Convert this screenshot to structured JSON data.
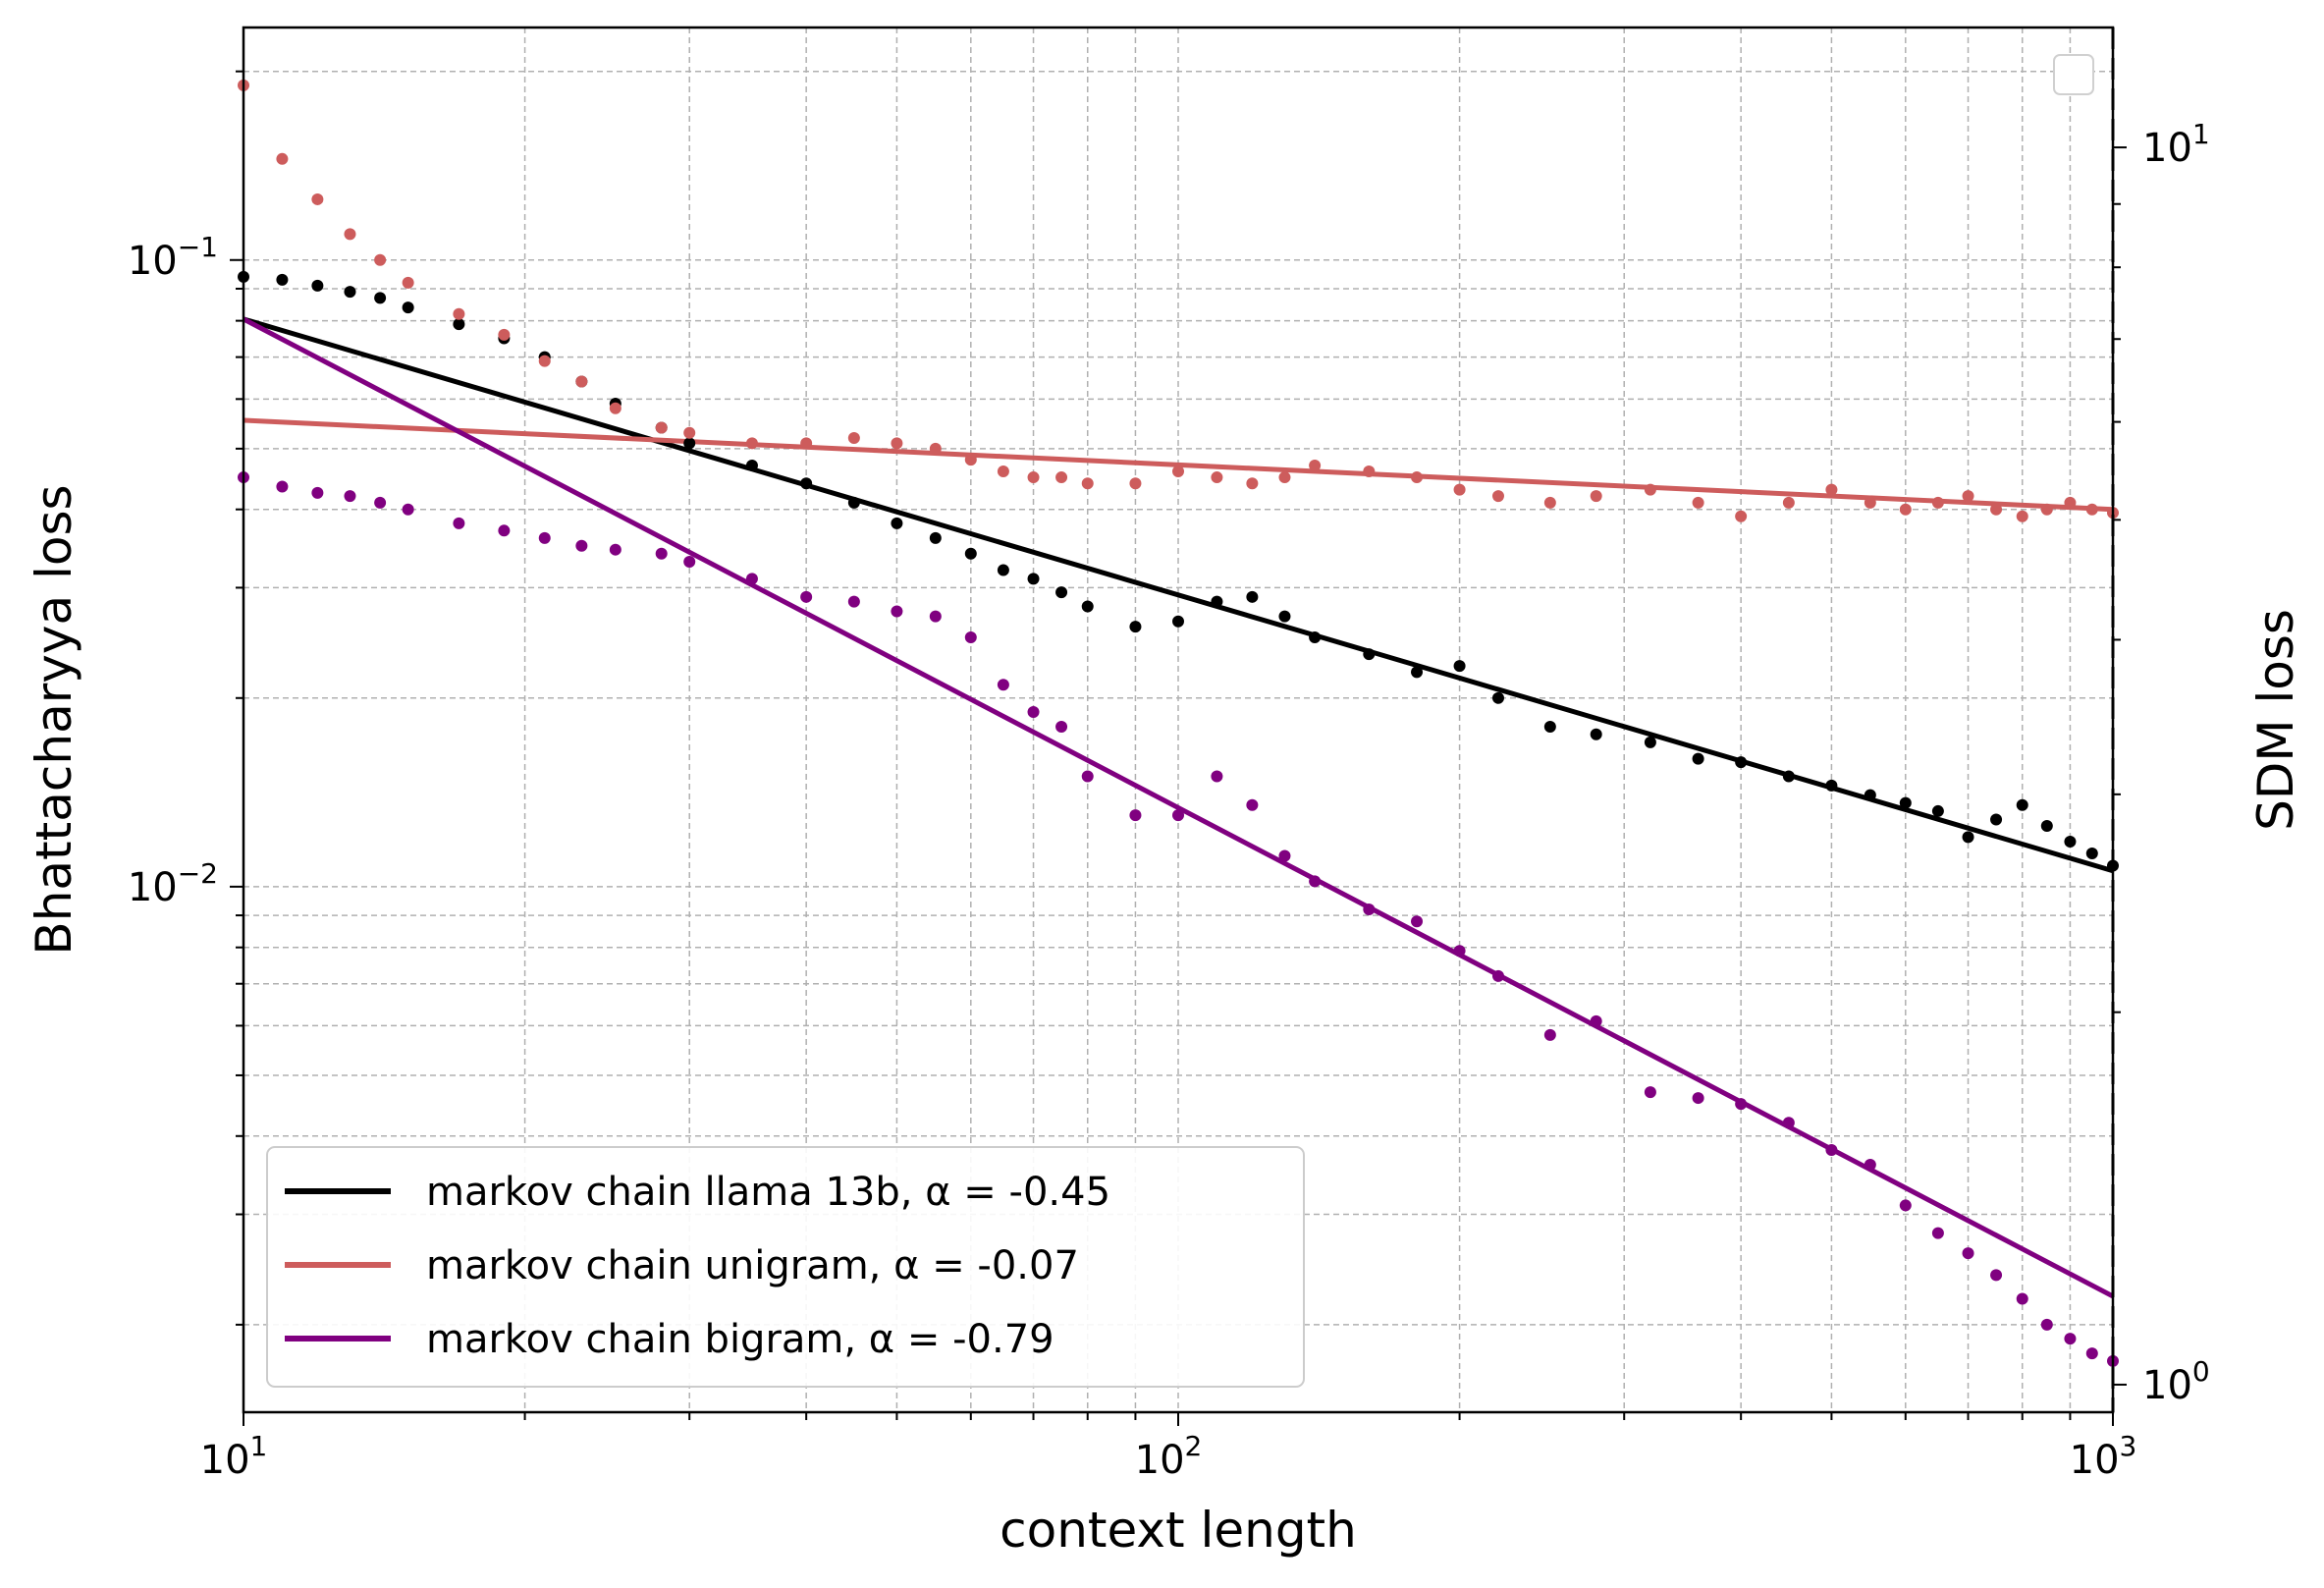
{
  "chart_data": {
    "type": "scatter",
    "x_scale": "log",
    "y_scale": "log",
    "xlabel": "context length",
    "ylabel": "Bhattacharyya loss",
    "y2label": "SDM loss",
    "xlim": [
      10,
      1000
    ],
    "ylim": [
      0.00145,
      0.235
    ],
    "y2lim": [
      0.95,
      12.5
    ],
    "x_ticks": [
      {
        "value": 10,
        "base": "10",
        "exp": "1"
      },
      {
        "value": 100,
        "base": "10",
        "exp": "2"
      },
      {
        "value": 1000,
        "base": "10",
        "exp": "3"
      }
    ],
    "y_ticks": [
      {
        "value": 0.1,
        "base": "10",
        "exp": "−1"
      },
      {
        "value": 0.01,
        "base": "10",
        "exp": "−2"
      }
    ],
    "y2_ticks": [
      {
        "value": 10,
        "base": "10",
        "exp": "1"
      },
      {
        "value": 1,
        "base": "10",
        "exp": "0"
      }
    ],
    "grid": true,
    "legend_position": "lower-left",
    "series": [
      {
        "name": "markov chain llama 13b, α = -0.45",
        "color": "#000000",
        "fit_exponent": -0.45,
        "fit": [
          [
            10,
            0.0805
          ],
          [
            1000,
            0.0106
          ]
        ],
        "points": [
          [
            10,
            0.094
          ],
          [
            11,
            0.093
          ],
          [
            12,
            0.091
          ],
          [
            13,
            0.089
          ],
          [
            14,
            0.087
          ],
          [
            15,
            0.084
          ],
          [
            17,
            0.079
          ],
          [
            19,
            0.075
          ],
          [
            21,
            0.07
          ],
          [
            23,
            0.064
          ],
          [
            25,
            0.059
          ],
          [
            28,
            0.054
          ],
          [
            30,
            0.051
          ],
          [
            35,
            0.047
          ],
          [
            40,
            0.044
          ],
          [
            45,
            0.041
          ],
          [
            50,
            0.038
          ],
          [
            55,
            0.036
          ],
          [
            60,
            0.034
          ],
          [
            65,
            0.032
          ],
          [
            70,
            0.031
          ],
          [
            75,
            0.0295
          ],
          [
            80,
            0.028
          ],
          [
            90,
            0.026
          ],
          [
            100,
            0.0265
          ],
          [
            110,
            0.0285
          ],
          [
            120,
            0.029
          ],
          [
            130,
            0.027
          ],
          [
            140,
            0.025
          ],
          [
            160,
            0.0235
          ],
          [
            180,
            0.022
          ],
          [
            200,
            0.0225
          ],
          [
            220,
            0.02
          ],
          [
            250,
            0.018
          ],
          [
            280,
            0.0175
          ],
          [
            320,
            0.017
          ],
          [
            360,
            0.016
          ],
          [
            400,
            0.0158
          ],
          [
            450,
            0.015
          ],
          [
            500,
            0.0145
          ],
          [
            550,
            0.014
          ],
          [
            600,
            0.0136
          ],
          [
            650,
            0.0132
          ],
          [
            700,
            0.012
          ],
          [
            750,
            0.0128
          ],
          [
            800,
            0.0135
          ],
          [
            850,
            0.0125
          ],
          [
            900,
            0.0118
          ],
          [
            950,
            0.0113
          ],
          [
            1000,
            0.0108
          ]
        ]
      },
      {
        "name": "markov chain unigram, α = -0.07",
        "color": "#cd5c5c",
        "fit_exponent": -0.07,
        "fit": [
          [
            10,
            0.0555
          ],
          [
            1000,
            0.04
          ]
        ],
        "points": [
          [
            10,
            0.19
          ],
          [
            11,
            0.145
          ],
          [
            12,
            0.125
          ],
          [
            13,
            0.11
          ],
          [
            14,
            0.1
          ],
          [
            15,
            0.092
          ],
          [
            17,
            0.082
          ],
          [
            19,
            0.076
          ],
          [
            21,
            0.069
          ],
          [
            23,
            0.064
          ],
          [
            25,
            0.058
          ],
          [
            28,
            0.054
          ],
          [
            30,
            0.053
          ],
          [
            35,
            0.051
          ],
          [
            40,
            0.051
          ],
          [
            45,
            0.052
          ],
          [
            50,
            0.051
          ],
          [
            55,
            0.05
          ],
          [
            60,
            0.048
          ],
          [
            65,
            0.046
          ],
          [
            70,
            0.045
          ],
          [
            75,
            0.045
          ],
          [
            80,
            0.044
          ],
          [
            90,
            0.044
          ],
          [
            100,
            0.046
          ],
          [
            110,
            0.045
          ],
          [
            120,
            0.044
          ],
          [
            130,
            0.045
          ],
          [
            140,
            0.047
          ],
          [
            160,
            0.046
          ],
          [
            180,
            0.045
          ],
          [
            200,
            0.043
          ],
          [
            220,
            0.042
          ],
          [
            250,
            0.041
          ],
          [
            280,
            0.042
          ],
          [
            320,
            0.043
          ],
          [
            360,
            0.041
          ],
          [
            400,
            0.039
          ],
          [
            450,
            0.041
          ],
          [
            500,
            0.043
          ],
          [
            550,
            0.041
          ],
          [
            600,
            0.04
          ],
          [
            650,
            0.041
          ],
          [
            700,
            0.042
          ],
          [
            750,
            0.04
          ],
          [
            800,
            0.039
          ],
          [
            850,
            0.04
          ],
          [
            900,
            0.041
          ],
          [
            950,
            0.04
          ],
          [
            1000,
            0.0395
          ]
        ]
      },
      {
        "name": "markov chain bigram, α = -0.79",
        "color": "#800080",
        "fit_exponent": -0.79,
        "fit": [
          [
            10,
            0.0805
          ],
          [
            1000,
            0.00222
          ]
        ],
        "points": [
          [
            10,
            0.045
          ],
          [
            11,
            0.0435
          ],
          [
            12,
            0.0425
          ],
          [
            13,
            0.042
          ],
          [
            14,
            0.041
          ],
          [
            15,
            0.04
          ],
          [
            17,
            0.038
          ],
          [
            19,
            0.037
          ],
          [
            21,
            0.036
          ],
          [
            23,
            0.035
          ],
          [
            25,
            0.0345
          ],
          [
            28,
            0.034
          ],
          [
            30,
            0.033
          ],
          [
            35,
            0.031
          ],
          [
            40,
            0.029
          ],
          [
            45,
            0.0285
          ],
          [
            50,
            0.0275
          ],
          [
            55,
            0.027
          ],
          [
            60,
            0.025
          ],
          [
            65,
            0.021
          ],
          [
            70,
            0.019
          ],
          [
            75,
            0.018
          ],
          [
            80,
            0.015
          ],
          [
            90,
            0.013
          ],
          [
            100,
            0.013
          ],
          [
            110,
            0.015
          ],
          [
            120,
            0.0135
          ],
          [
            130,
            0.0112
          ],
          [
            140,
            0.0102
          ],
          [
            160,
            0.0092
          ],
          [
            180,
            0.0088
          ],
          [
            200,
            0.0079
          ],
          [
            220,
            0.0072
          ],
          [
            250,
            0.0058
          ],
          [
            280,
            0.0061
          ],
          [
            320,
            0.0047
          ],
          [
            360,
            0.0046
          ],
          [
            400,
            0.0045
          ],
          [
            450,
            0.0042
          ],
          [
            500,
            0.0038
          ],
          [
            550,
            0.0036
          ],
          [
            600,
            0.0031
          ],
          [
            650,
            0.0028
          ],
          [
            700,
            0.0026
          ],
          [
            750,
            0.0024
          ],
          [
            800,
            0.0022
          ],
          [
            850,
            0.002
          ],
          [
            900,
            0.0019
          ],
          [
            950,
            0.0018
          ],
          [
            1000,
            0.00175
          ]
        ]
      }
    ]
  }
}
